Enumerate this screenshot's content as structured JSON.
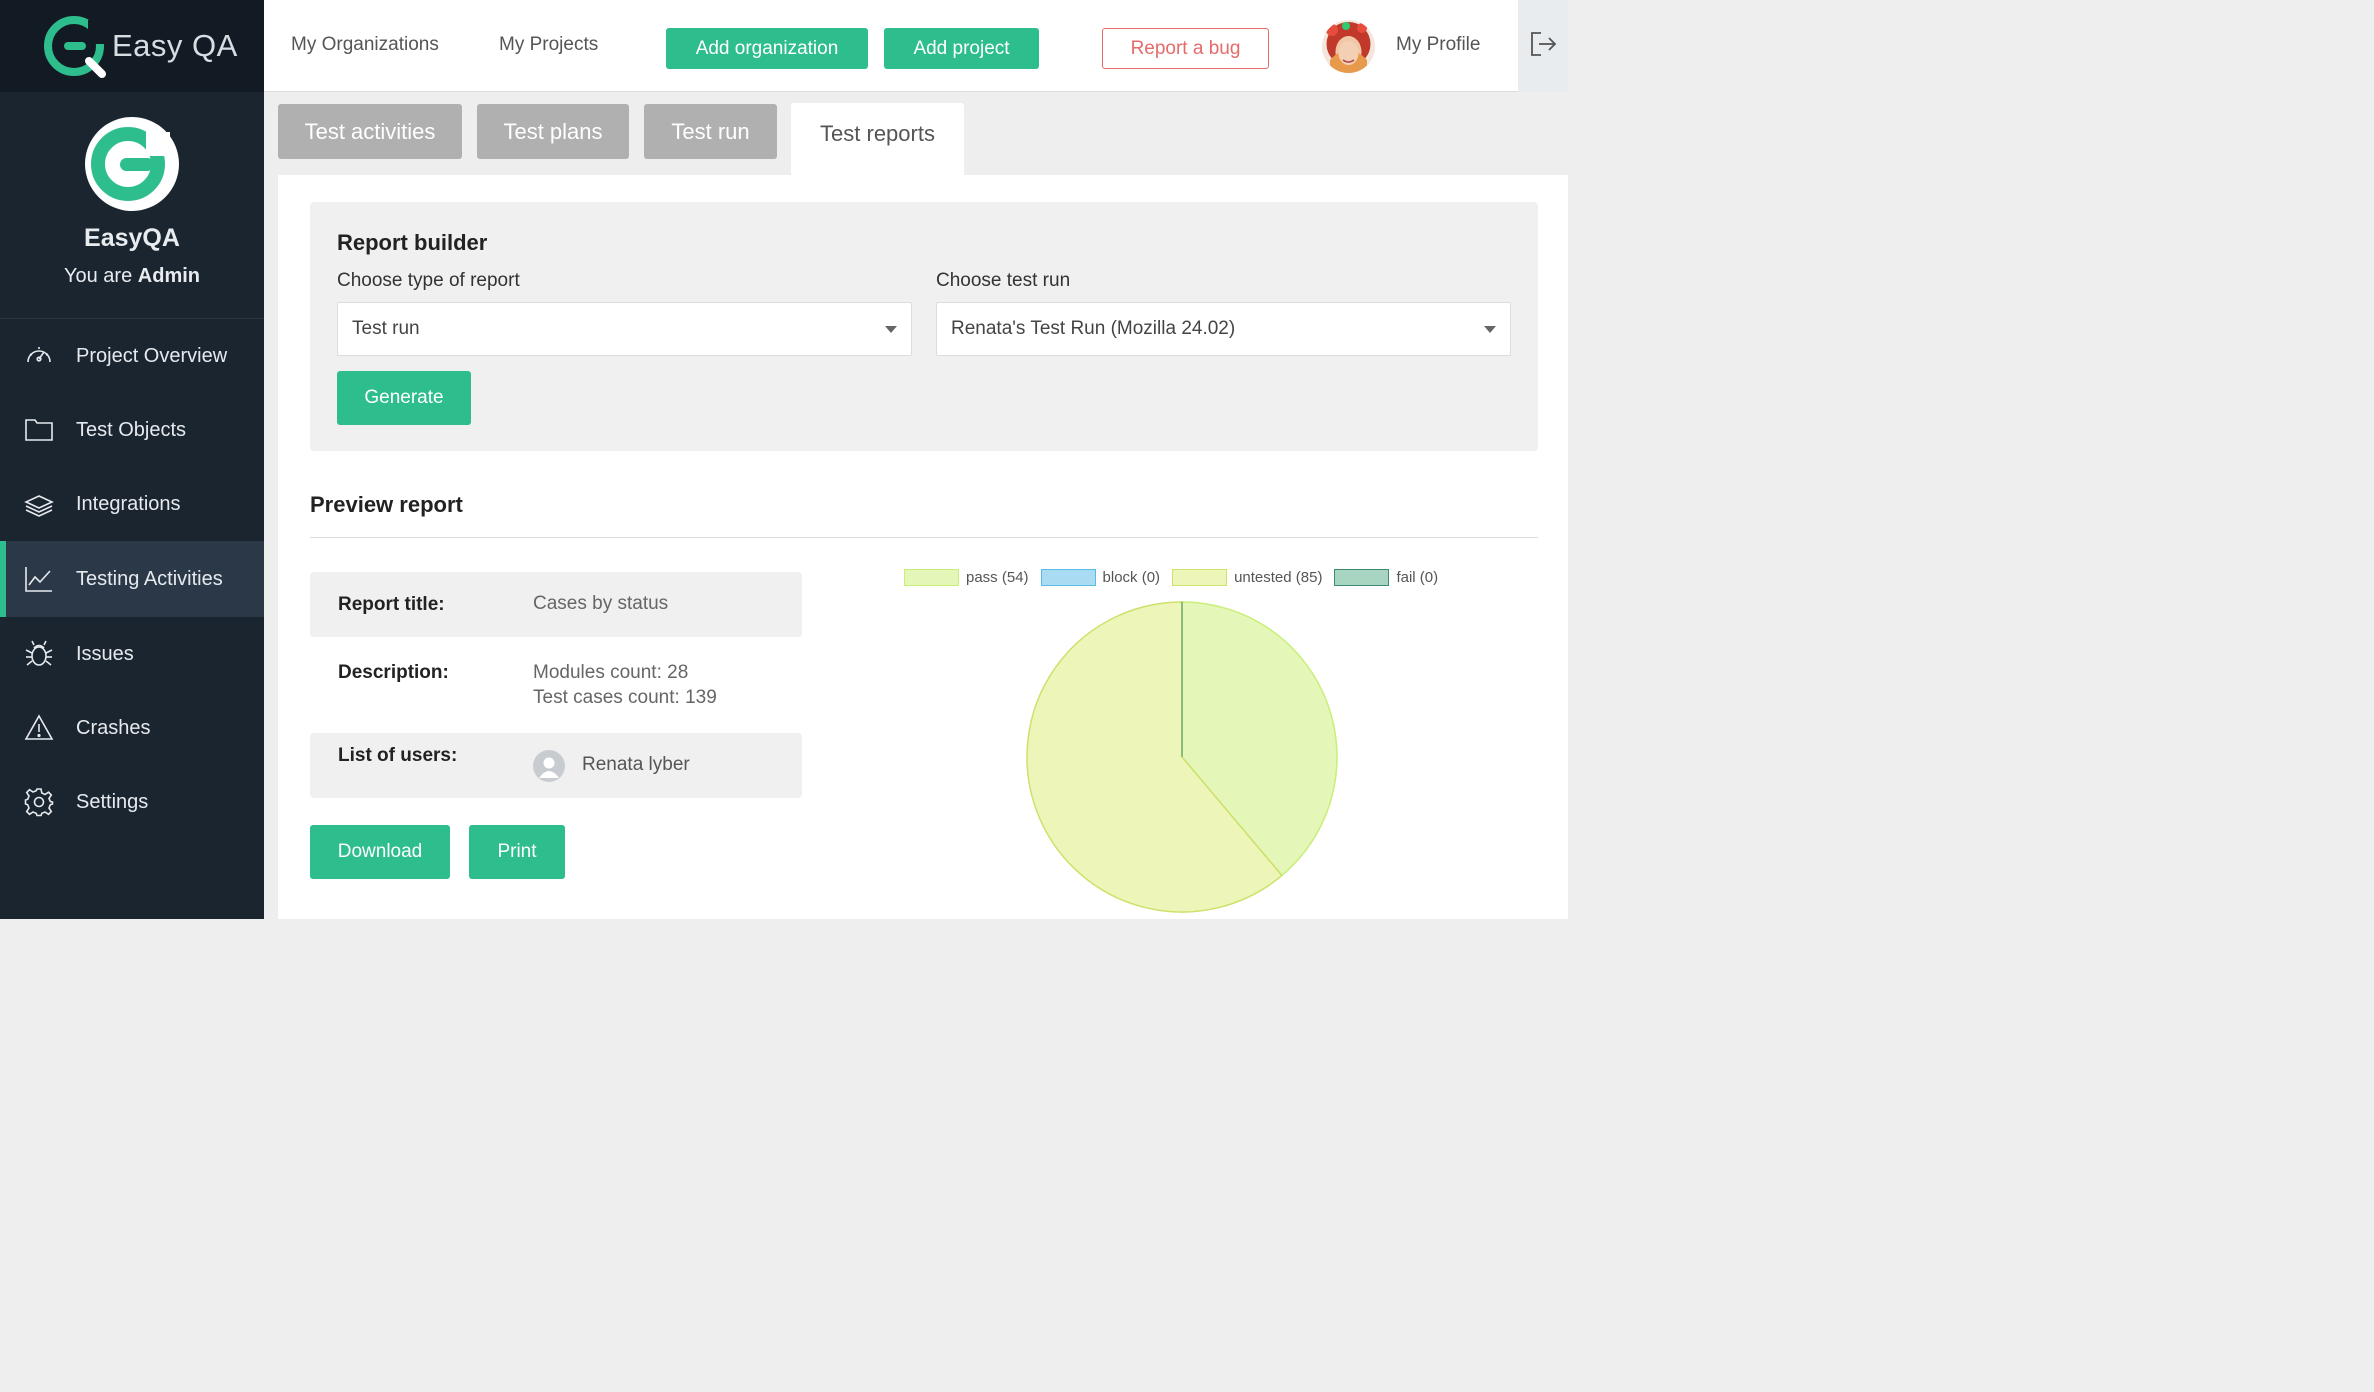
{
  "brand": {
    "name": "Easy QA"
  },
  "profile": {
    "org": "EasyQA",
    "role_prefix": "You are",
    "role": "Admin"
  },
  "sidebar": {
    "items": [
      {
        "label": "Project Overview",
        "icon": "speedometer-icon"
      },
      {
        "label": "Test Objects",
        "icon": "folder-icon"
      },
      {
        "label": "Integrations",
        "icon": "layers-icon"
      },
      {
        "label": "Testing Activities",
        "icon": "chart-line-icon",
        "active": true
      },
      {
        "label": "Issues",
        "icon": "bug-icon"
      },
      {
        "label": "Crashes",
        "icon": "warning-icon"
      },
      {
        "label": "Settings",
        "icon": "gear-icon"
      }
    ]
  },
  "topbar": {
    "my_organizations": "My Organizations",
    "my_projects": "My Projects",
    "add_organization": "Add organization",
    "add_project": "Add project",
    "report_bug": "Report a bug",
    "my_profile": "My Profile"
  },
  "tabs": [
    {
      "label": "Test activities"
    },
    {
      "label": "Test plans"
    },
    {
      "label": "Test run"
    },
    {
      "label": "Test reports",
      "active": true
    }
  ],
  "builder": {
    "title": "Report builder",
    "type_label": "Choose type of report",
    "type_value": "Test run",
    "run_label": "Choose test run",
    "run_value": "Renata's Test Run (Mozilla 24.02)",
    "generate": "Generate"
  },
  "preview": {
    "title": "Preview report",
    "report_title_key": "Report title:",
    "report_title_val": "Cases by status",
    "description_key": "Description:",
    "description_line1": "Modules count: 28",
    "description_line2": "Test cases count: 139",
    "users_key": "List of users:",
    "user_name": "Renata lyber",
    "download": "Download",
    "print": "Print"
  },
  "colors": {
    "accent": "#2ebd8d",
    "sidebar": "#1b2530",
    "danger": "#e56b6b"
  },
  "chart_data": {
    "type": "pie",
    "series": [
      {
        "name": "pass (54)",
        "value": 54,
        "fill": "#e4f7b8",
        "stroke": "#c9ee79"
      },
      {
        "name": "block (0)",
        "value": 0,
        "fill": "#a9dcf3",
        "stroke": "#5bbbe6"
      },
      {
        "name": "untested (85)",
        "value": 85,
        "fill": "#eef5b8",
        "stroke": "#cde16b"
      },
      {
        "name": "fail (0)",
        "value": 0,
        "fill": "#a8d4c2",
        "stroke": "#3e8c70"
      }
    ],
    "legend_position": "top"
  }
}
